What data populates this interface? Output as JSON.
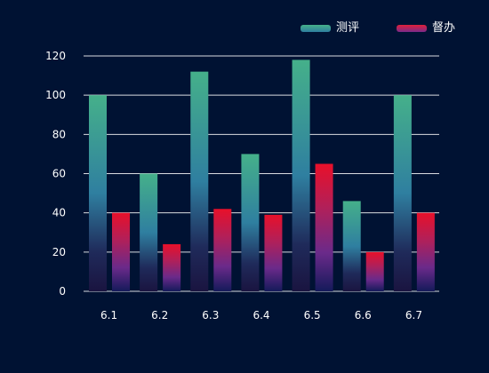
{
  "chart_data": {
    "type": "bar",
    "categories": [
      "6.1",
      "6.2",
      "6.3",
      "6.4",
      "6.5",
      "6.6",
      "6.7"
    ],
    "series": [
      {
        "name": "测评",
        "values": [
          100,
          60,
          112,
          70,
          118,
          46,
          100
        ],
        "color": "#45b08a"
      },
      {
        "name": "督办",
        "values": [
          40,
          24,
          42,
          39,
          65,
          20,
          40
        ],
        "color": "#e0203a"
      }
    ],
    "ylim": [
      0,
      120
    ],
    "yticks": [
      0,
      20,
      40,
      60,
      80,
      100,
      120
    ],
    "grid": true,
    "legend": "top-right"
  },
  "colors": {
    "background": "#001233",
    "grid": "#ffffff",
    "series1_top": "#45b08a",
    "series1_mid": "#2f7fa0",
    "series1_bottom": "#1f1a4a",
    "series2_top": "#e8102a",
    "series2_mid": "#8a2a8a",
    "series2_bottom": "#1a1a5a"
  }
}
